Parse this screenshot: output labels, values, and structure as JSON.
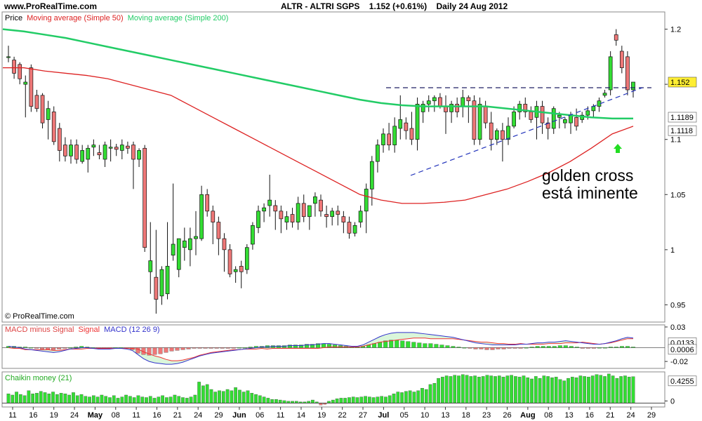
{
  "header": {
    "site": "www.ProRealTime.com",
    "instrument": "ALTR - ALTRI SGPS",
    "price_change": "1.152 (+0.61%)",
    "period": "Daily  24 Aug 2012"
  },
  "watermark": "© ProRealTime.com",
  "annotation": {
    "line1": "golden cross",
    "line2": "está iminente"
  },
  "colors": {
    "up": "#33dd33",
    "down": "#ee7777",
    "ma50": "#dd2222",
    "ma200": "#22cc66",
    "macd": "#3333cc",
    "signal": "#ee3333",
    "chaikin": "#33dd33",
    "arrow": "#22dd22"
  },
  "chart_data": [
    {
      "type": "candlestick",
      "title": "",
      "legend": [
        "Price",
        "Moving average (Simple 50)",
        "Moving average (Simple 200)"
      ],
      "ylim": [
        0.935,
        1.215
      ],
      "y_ticks": [
        "1.2",
        "1.15",
        "1.1",
        "1.05",
        "1",
        "0.95"
      ],
      "last_price_label": "1.152",
      "ma200_label": "1.1189",
      "ma50_label": "1.1118",
      "x_labels": [
        "11",
        "16",
        "19",
        "24",
        "May",
        "08",
        "11",
        "16",
        "21",
        "24",
        "29",
        "Jun",
        "06",
        "11",
        "14",
        "19",
        "22",
        "27",
        "Jul",
        "05",
        "10",
        "13",
        "18",
        "23",
        "26",
        "Aug",
        "08",
        "13",
        "16",
        "21",
        "24",
        "29"
      ],
      "ohlc": [
        [
          1.175,
          1.185,
          1.17,
          1.175
        ],
        [
          1.172,
          1.175,
          1.155,
          1.16
        ],
        [
          1.168,
          1.17,
          1.15,
          1.155
        ],
        [
          1.15,
          1.158,
          1.12,
          1.152
        ],
        [
          1.165,
          1.168,
          1.125,
          1.13
        ],
        [
          1.14,
          1.145,
          1.125,
          1.128
        ],
        [
          1.14,
          1.142,
          1.11,
          1.115
        ],
        [
          1.118,
          1.135,
          1.1,
          1.128
        ],
        [
          1.125,
          1.13,
          1.095,
          1.098
        ],
        [
          1.11,
          1.115,
          1.08,
          1.09
        ],
        [
          1.095,
          1.102,
          1.08,
          1.085
        ],
        [
          1.085,
          1.1,
          1.078,
          1.095
        ],
        [
          1.095,
          1.1,
          1.078,
          1.082
        ],
        [
          1.08,
          1.095,
          1.078,
          1.09
        ],
        [
          1.082,
          1.095,
          1.07,
          1.092
        ],
        [
          1.093,
          1.1,
          1.085,
          1.095
        ],
        [
          1.088,
          1.095,
          1.082,
          1.086
        ],
        [
          1.082,
          1.098,
          1.075,
          1.095
        ],
        [
          1.092,
          1.1,
          1.08,
          1.093
        ],
        [
          1.093,
          1.096,
          1.085,
          1.091
        ],
        [
          1.09,
          1.1,
          1.082,
          1.095
        ],
        [
          1.094,
          1.098,
          1.087,
          1.092
        ],
        [
          1.095,
          1.098,
          1.055,
          1.082
        ],
        [
          1.082,
          1.092,
          1.075,
          1.09
        ],
        [
          1.092,
          1.095,
          0.998,
          1.002
        ],
        [
          0.98,
          1.025,
          0.96,
          0.99
        ],
        [
          0.975,
          1.018,
          0.942,
          0.955
        ],
        [
          0.958,
          0.985,
          0.95,
          0.982
        ],
        [
          0.96,
          1.025,
          0.955,
          0.985
        ],
        [
          0.995,
          1.06,
          0.99,
          1.005
        ],
        [
          0.982,
          1.01,
          0.975,
          1.01
        ],
        [
          1.002,
          1.02,
          0.99,
          1.008
        ],
        [
          1.0,
          1.02,
          0.985,
          1.01
        ],
        [
          1.01,
          1.035,
          0.995,
          1.012
        ],
        [
          1.01,
          1.058,
          1.008,
          1.05
        ],
        [
          1.05,
          1.055,
          1.03,
          1.035
        ],
        [
          1.035,
          1.04,
          1.005,
          1.025
        ],
        [
          1.025,
          1.03,
          0.995,
          1.01
        ],
        [
          1.01,
          1.015,
          0.98,
          1.0
        ],
        [
          1.0,
          1.005,
          0.975,
          0.978
        ],
        [
          0.98,
          0.985,
          0.97,
          0.982
        ],
        [
          0.985,
          0.99,
          0.965,
          0.98
        ],
        [
          0.982,
          1.005,
          0.978,
          1.002
        ],
        [
          1.005,
          1.025,
          1.0,
          1.022
        ],
        [
          1.02,
          1.04,
          1.015,
          1.035
        ],
        [
          1.035,
          1.042,
          1.025,
          1.038
        ],
        [
          1.04,
          1.068,
          1.03,
          1.045
        ],
        [
          1.04,
          1.045,
          1.018,
          1.035
        ],
        [
          1.035,
          1.04,
          1.015,
          1.028
        ],
        [
          1.025,
          1.035,
          1.018,
          1.03
        ],
        [
          1.032,
          1.038,
          1.02,
          1.025
        ],
        [
          1.025,
          1.048,
          1.018,
          1.042
        ],
        [
          1.042,
          1.05,
          1.025,
          1.03
        ],
        [
          1.03,
          1.04,
          1.018,
          1.04
        ],
        [
          1.042,
          1.052,
          1.03,
          1.048
        ],
        [
          1.045,
          1.05,
          1.03,
          1.035
        ],
        [
          1.032,
          1.04,
          1.02,
          1.03
        ],
        [
          1.03,
          1.038,
          1.022,
          1.035
        ],
        [
          1.035,
          1.04,
          1.022,
          1.032
        ],
        [
          1.03,
          1.035,
          1.015,
          1.025
        ],
        [
          1.025,
          1.03,
          1.01,
          1.015
        ],
        [
          1.015,
          1.025,
          1.012,
          1.022
        ],
        [
          1.025,
          1.04,
          1.02,
          1.035
        ],
        [
          1.035,
          1.06,
          1.015,
          1.055
        ],
        [
          1.055,
          1.085,
          1.04,
          1.08
        ],
        [
          1.08,
          1.1,
          1.07,
          1.095
        ],
        [
          1.095,
          1.11,
          1.088,
          1.105
        ],
        [
          1.105,
          1.115,
          1.09,
          1.095
        ],
        [
          1.095,
          1.12,
          1.088,
          1.112
        ],
        [
          1.11,
          1.14,
          1.1,
          1.118
        ],
        [
          1.115,
          1.12,
          1.1,
          1.108
        ],
        [
          1.11,
          1.125,
          1.095,
          1.1
        ],
        [
          1.1,
          1.138,
          1.09,
          1.132
        ],
        [
          1.125,
          1.135,
          1.115,
          1.132
        ],
        [
          1.132,
          1.14,
          1.125,
          1.135
        ],
        [
          1.135,
          1.14,
          1.125,
          1.138
        ],
        [
          1.138,
          1.142,
          1.128,
          1.13
        ],
        [
          1.13,
          1.14,
          1.105,
          1.125
        ],
        [
          1.125,
          1.135,
          1.115,
          1.132
        ],
        [
          1.132,
          1.138,
          1.12,
          1.125
        ],
        [
          1.13,
          1.145,
          1.12,
          1.138
        ],
        [
          1.138,
          1.14,
          1.115,
          1.135
        ],
        [
          1.135,
          1.14,
          1.095,
          1.1
        ],
        [
          1.1,
          1.138,
          1.095,
          1.132
        ],
        [
          1.13,
          1.135,
          1.11,
          1.115
        ],
        [
          1.115,
          1.125,
          1.09,
          1.1
        ],
        [
          1.1,
          1.11,
          1.095,
          1.108
        ],
        [
          1.108,
          1.115,
          1.08,
          1.1
        ],
        [
          1.1,
          1.12,
          1.095,
          1.112
        ],
        [
          1.112,
          1.13,
          1.11,
          1.125
        ],
        [
          1.125,
          1.135,
          1.118,
          1.132
        ],
        [
          1.132,
          1.138,
          1.12,
          1.125
        ],
        [
          1.125,
          1.13,
          1.115,
          1.118
        ],
        [
          1.12,
          1.135,
          1.1,
          1.13
        ],
        [
          1.13,
          1.135,
          1.105,
          1.115
        ],
        [
          1.115,
          1.12,
          1.1,
          1.11
        ],
        [
          1.11,
          1.13,
          1.105,
          1.128
        ],
        [
          1.12,
          1.125,
          1.11,
          1.122
        ],
        [
          1.115,
          1.12,
          1.11,
          1.118
        ],
        [
          1.115,
          1.125,
          1.105,
          1.122
        ],
        [
          1.12,
          1.128,
          1.108,
          1.112
        ],
        [
          1.118,
          1.125,
          1.115,
          1.122
        ],
        [
          1.122,
          1.13,
          1.118,
          1.126
        ],
        [
          1.126,
          1.132,
          1.12,
          1.13
        ],
        [
          1.13,
          1.138,
          1.125,
          1.135
        ],
        [
          1.14,
          1.145,
          1.138,
          1.142
        ],
        [
          1.145,
          1.18,
          1.14,
          1.175
        ],
        [
          1.195,
          1.2,
          1.185,
          1.19
        ],
        [
          1.18,
          1.185,
          1.16,
          1.165
        ],
        [
          1.175,
          1.18,
          1.14,
          1.145
        ],
        [
          1.145,
          1.152,
          1.138,
          1.152
        ]
      ],
      "ma50": [
        1.165,
        1.165,
        1.162,
        1.16,
        1.158,
        1.155,
        1.15,
        1.145,
        1.14,
        1.13,
        1.12,
        1.11,
        1.1,
        1.09,
        1.08,
        1.07,
        1.06,
        1.05,
        1.045,
        1.042,
        1.042,
        1.043,
        1.045,
        1.05,
        1.055,
        1.062,
        1.07,
        1.08,
        1.092,
        1.105,
        1.112
      ],
      "ma200": [
        1.2,
        1.198,
        1.195,
        1.192,
        1.188,
        1.184,
        1.18,
        1.176,
        1.172,
        1.168,
        1.164,
        1.16,
        1.156,
        1.152,
        1.148,
        1.144,
        1.14,
        1.136,
        1.133,
        1.131,
        1.13,
        1.13,
        1.13,
        1.13,
        1.128,
        1.126,
        1.124,
        1.122,
        1.12,
        1.119,
        1.119
      ]
    },
    {
      "type": "bar",
      "title": "",
      "legend": [
        "MACD minus Signal",
        "Signal",
        "MACD (12 26 9)"
      ],
      "ylim": [
        -0.028,
        0.031
      ],
      "y_ticks": [
        "0.03",
        "-0.02"
      ],
      "value_labels": [
        "0.0133",
        "0.0006"
      ],
      "histogram": [
        0.002,
        0.002,
        0.001,
        0.001,
        0.0,
        -0.001,
        -0.002,
        -0.003,
        -0.003,
        -0.002,
        -0.001,
        0.0,
        0.001,
        0.002,
        0.001,
        0.0,
        -0.001,
        -0.001,
        -0.001,
        0.0,
        0.0,
        -0.001,
        -0.003,
        -0.008,
        -0.01,
        -0.011,
        -0.01,
        -0.009,
        -0.007,
        -0.005,
        -0.004,
        -0.003,
        -0.002,
        -0.001,
        -0.001,
        -0.001,
        -0.001,
        -0.001,
        -0.001,
        -0.001,
        -0.001,
        0.0,
        0.0,
        0.001,
        0.002,
        0.002,
        0.003,
        0.003,
        0.003,
        0.003,
        0.004,
        0.004,
        0.004,
        0.005,
        0.005,
        0.006,
        0.006,
        0.005,
        0.004,
        0.003,
        0.002,
        0.001,
        0.001,
        0.002,
        0.004,
        0.006,
        0.008,
        0.01,
        0.011,
        0.011,
        0.01,
        0.009,
        0.008,
        0.007,
        0.006,
        0.006,
        0.005,
        0.004,
        0.003,
        0.002,
        0.001,
        0.0,
        -0.001,
        -0.002,
        -0.002,
        -0.003,
        -0.003,
        -0.002,
        -0.002,
        -0.001,
        -0.001,
        -0.001,
        0.0,
        0.001,
        0.002,
        0.002,
        0.002,
        0.002,
        0.003,
        0.003,
        0.002,
        0.001,
        -0.001,
        -0.001,
        -0.001,
        0.0,
        0.0,
        0.001,
        0.001,
        0.002,
        0.002,
        0.001
      ],
      "macd": [
        0.002,
        0.001,
        0.0,
        -0.002,
        -0.003,
        -0.004,
        -0.005,
        -0.006,
        -0.007,
        -0.006,
        -0.004,
        -0.002,
        -0.001,
        0.0,
        0.0,
        -0.001,
        -0.002,
        -0.002,
        -0.002,
        -0.001,
        -0.001,
        -0.002,
        -0.004,
        -0.01,
        -0.016,
        -0.02,
        -0.022,
        -0.023,
        -0.024,
        -0.024,
        -0.023,
        -0.021,
        -0.018,
        -0.015,
        -0.012,
        -0.01,
        -0.008,
        -0.007,
        -0.006,
        -0.005,
        -0.004,
        -0.003,
        -0.002,
        -0.001,
        0.0,
        0.001,
        0.001,
        0.002,
        0.002,
        0.002,
        0.003,
        0.003,
        0.003,
        0.004,
        0.004,
        0.005,
        0.006,
        0.006,
        0.005,
        0.004,
        0.003,
        0.002,
        0.002,
        0.004,
        0.008,
        0.012,
        0.016,
        0.019,
        0.021,
        0.022,
        0.022,
        0.022,
        0.022,
        0.021,
        0.02,
        0.019,
        0.018,
        0.017,
        0.016,
        0.015,
        0.013,
        0.011,
        0.009,
        0.007,
        0.006,
        0.005,
        0.004,
        0.004,
        0.004,
        0.004,
        0.004,
        0.005,
        0.005,
        0.006,
        0.007,
        0.007,
        0.008,
        0.008,
        0.009,
        0.01,
        0.009,
        0.008,
        0.007,
        0.006,
        0.005,
        0.005,
        0.006,
        0.008,
        0.01,
        0.013,
        0.015,
        0.014
      ],
      "signal": [
        0.0,
        -0.001,
        -0.001,
        -0.003,
        -0.003,
        -0.003,
        -0.003,
        -0.003,
        -0.004,
        -0.004,
        -0.003,
        -0.002,
        -0.002,
        -0.002,
        -0.001,
        -0.001,
        -0.001,
        -0.001,
        -0.001,
        -0.001,
        -0.001,
        -0.001,
        -0.001,
        -0.002,
        -0.006,
        -0.009,
        -0.012,
        -0.014,
        -0.017,
        -0.019,
        -0.019,
        -0.018,
        -0.016,
        -0.014,
        -0.011,
        -0.009,
        -0.007,
        -0.006,
        -0.005,
        -0.004,
        -0.003,
        -0.003,
        -0.002,
        -0.002,
        -0.002,
        -0.001,
        -0.002,
        -0.001,
        -0.001,
        -0.001,
        -0.001,
        -0.001,
        -0.001,
        -0.001,
        -0.001,
        -0.001,
        0.0,
        0.001,
        0.001,
        0.001,
        0.001,
        0.001,
        0.001,
        0.002,
        0.004,
        0.006,
        0.008,
        0.009,
        0.01,
        0.011,
        0.012,
        0.013,
        0.014,
        0.014,
        0.014,
        0.013,
        0.013,
        0.013,
        0.013,
        0.013,
        0.012,
        0.011,
        0.01,
        0.009,
        0.008,
        0.008,
        0.007,
        0.006,
        0.006,
        0.005,
        0.005,
        0.006,
        0.005,
        0.005,
        0.005,
        0.005,
        0.006,
        0.006,
        0.006,
        0.007,
        0.007,
        0.007,
        0.008,
        0.007,
        0.006,
        0.005,
        0.006,
        0.007,
        0.009,
        0.011,
        0.013,
        0.013
      ]
    },
    {
      "type": "bar",
      "title": "",
      "legend": [
        "Chaikin money (21)"
      ],
      "ylim": [
        -0.04,
        0.48
      ],
      "y_ticks": [
        "0"
      ],
      "value_label": "0.4255",
      "values": [
        0.15,
        0.13,
        0.18,
        0.14,
        0.12,
        0.2,
        0.15,
        0.16,
        0.19,
        0.17,
        0.15,
        0.18,
        0.14,
        0.16,
        0.15,
        0.13,
        0.17,
        0.12,
        0.14,
        0.11,
        0.1,
        0.12,
        0.1,
        0.13,
        0.11,
        0.09,
        0.12,
        0.08,
        0.1,
        0.13,
        0.11,
        0.09,
        0.12,
        0.1,
        0.09,
        0.11,
        0.08,
        0.1,
        0.12,
        0.09,
        0.1,
        0.13,
        0.11,
        0.09,
        0.08,
        0.1,
        0.13,
        0.34,
        0.28,
        0.3,
        0.22,
        0.18,
        0.2,
        0.19,
        0.22,
        0.2,
        0.25,
        0.21,
        0.18,
        0.2,
        0.16,
        0.14,
        0.12,
        0.1,
        0.08,
        0.06,
        0.06,
        0.05,
        0.04,
        0.03,
        0.03,
        0.03,
        0.02,
        0.02,
        0.03,
        0.05,
        0.02,
        -0.03,
        -0.02,
        0.03,
        0.05,
        0.07,
        0.08,
        0.08,
        0.09,
        0.1,
        0.09,
        0.1,
        0.11,
        0.1,
        0.09,
        0.1,
        0.11,
        0.1,
        0.12,
        0.15,
        0.18,
        0.17,
        0.19,
        0.2,
        0.18,
        0.2,
        0.24,
        0.22,
        0.3,
        0.32,
        0.4,
        0.42,
        0.44,
        0.43,
        0.45,
        0.44,
        0.46,
        0.45,
        0.43,
        0.44,
        0.42,
        0.43,
        0.45,
        0.44,
        0.43,
        0.44,
        0.42,
        0.44,
        0.45,
        0.43,
        0.42,
        0.44,
        0.41,
        0.39,
        0.43,
        0.4,
        0.44,
        0.43,
        0.41,
        0.42,
        0.38,
        0.36,
        0.4,
        0.42,
        0.41,
        0.44,
        0.43,
        0.42,
        0.44,
        0.46,
        0.45,
        0.43,
        0.47,
        0.44,
        0.4,
        0.43,
        0.44,
        0.42,
        0.4255
      ]
    }
  ]
}
